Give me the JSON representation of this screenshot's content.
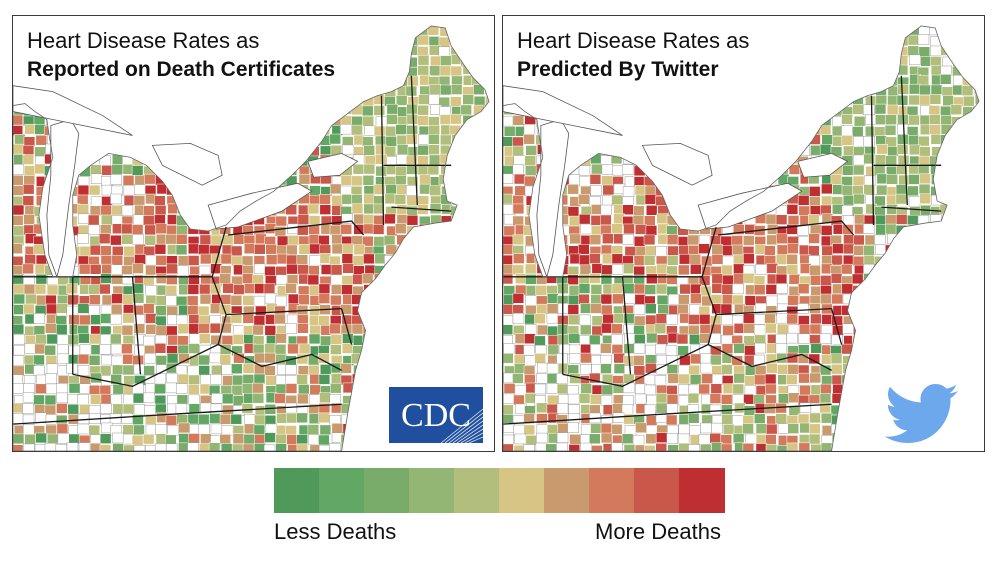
{
  "panels": [
    {
      "title_line1": "Heart Disease Rates as",
      "title_line2": "Reported on Death Certificates",
      "logo": "CDC"
    },
    {
      "title_line1": "Heart Disease Rates as",
      "title_line2": "Predicted By Twitter",
      "logo": "twitter-bird"
    }
  ],
  "legend": {
    "colors": [
      "#4f9a5b",
      "#62a764",
      "#79ac6b",
      "#93b674",
      "#b2be7c",
      "#d6c585",
      "#c99a6d",
      "#d47a5c",
      "#c9574a",
      "#bf2f31"
    ],
    "less_label": "Less Deaths",
    "more_label": "More Deaths"
  },
  "map_colors": {
    "water": "#ffffff",
    "no_data": "#ffffff",
    "state_border": "#1a1a1a",
    "county_border": "#ffffff"
  },
  "logo_colors": {
    "cdc_blue": "#1f4f9e",
    "twitter_blue": "#6ea8ec"
  }
}
